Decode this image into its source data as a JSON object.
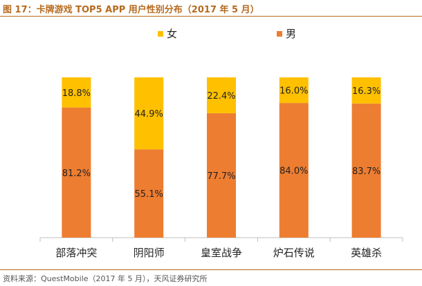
{
  "title": "图 17：卡牌游戏 TOP5 APP 用户性别分布（2017 年 5 月）",
  "source": "资料来源：QuestMobile（2017 年 5 月），天风证券研究所",
  "colors": {
    "female": "#FFC000",
    "male": "#ED7D31",
    "title": "#b56a1e"
  },
  "chart_data": {
    "type": "bar",
    "stacked": true,
    "percent": true,
    "categories": [
      "部落冲突",
      "阴阳师",
      "皇室战争",
      "炉石传说",
      "英雄杀"
    ],
    "series": [
      {
        "name": "男",
        "values": [
          81.2,
          55.1,
          77.7,
          84.0,
          83.7
        ],
        "labels": [
          "81.2%",
          "55.1%",
          "77.7%",
          "84.0%",
          "83.7%"
        ]
      },
      {
        "name": "女",
        "values": [
          18.8,
          44.9,
          22.4,
          16.0,
          16.3
        ],
        "labels": [
          "18.8%",
          "44.9%",
          "22.4%",
          "16.0%",
          "16.3%"
        ]
      }
    ],
    "legend": [
      "女",
      "男"
    ],
    "legend_position": "top",
    "ylim": [
      0,
      100
    ],
    "grid": false
  }
}
